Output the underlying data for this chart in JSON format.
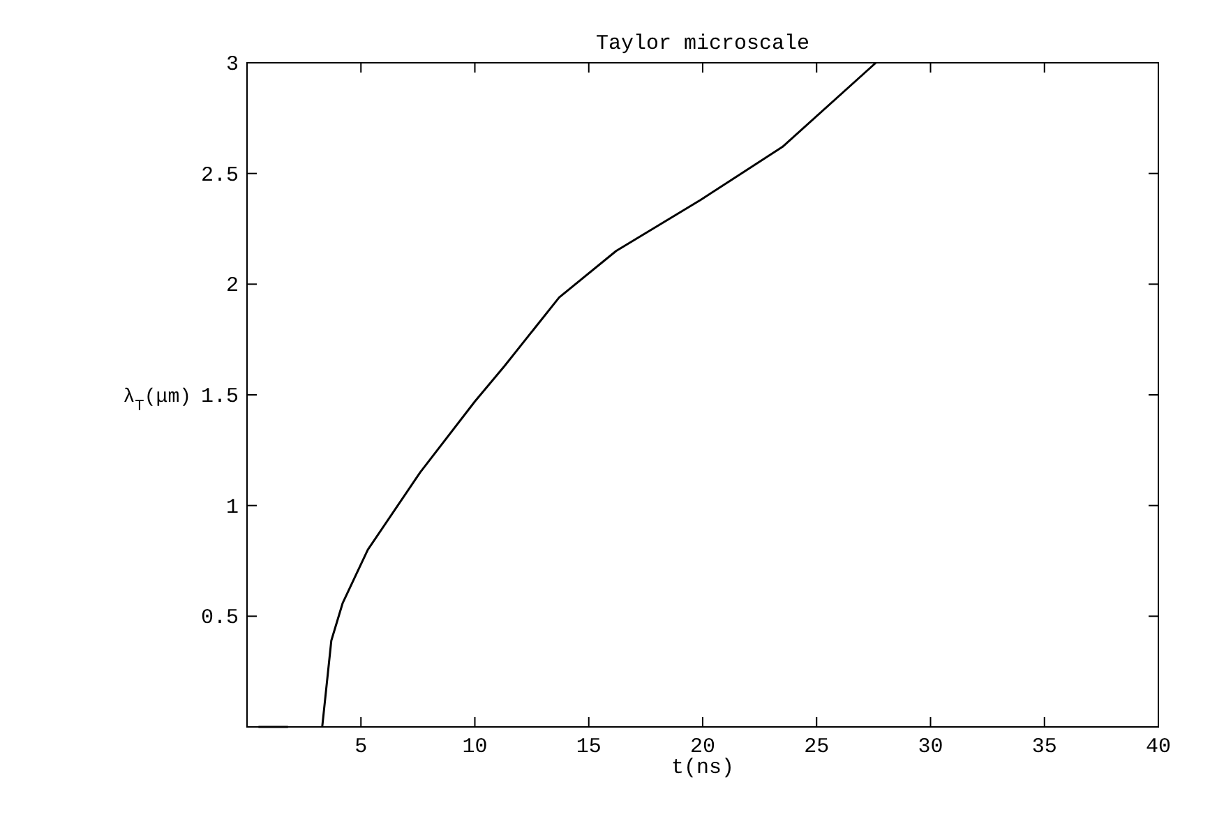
{
  "chart_data": {
    "type": "line",
    "title": "Taylor microscale",
    "xlabel": "t(ns)",
    "ylabel": "λ$_{T}$(μm)",
    "xlim": [
      0,
      40
    ],
    "ylim": [
      0,
      3
    ],
    "xticks": [
      5,
      10,
      15,
      20,
      25,
      30,
      35,
      40
    ],
    "yticks": [
      0.5,
      1,
      1.5,
      2,
      2.5,
      3
    ],
    "grid": false,
    "line_style": "solid",
    "marker": "none",
    "series": [
      {
        "color": "#000000",
        "x": [
          0.5,
          1.8,
          3.2,
          3.3,
          3.7,
          4.2,
          5.3,
          7.6,
          10,
          11.3,
          13.7,
          16.2,
          19.9,
          23.5,
          27.6
        ],
        "values": [
          0,
          0,
          null,
          0,
          0.39,
          0.56,
          0.8,
          1.15,
          1.47,
          1.63,
          1.94,
          2.15,
          2.38,
          2.62,
          3
        ]
      }
    ]
  }
}
